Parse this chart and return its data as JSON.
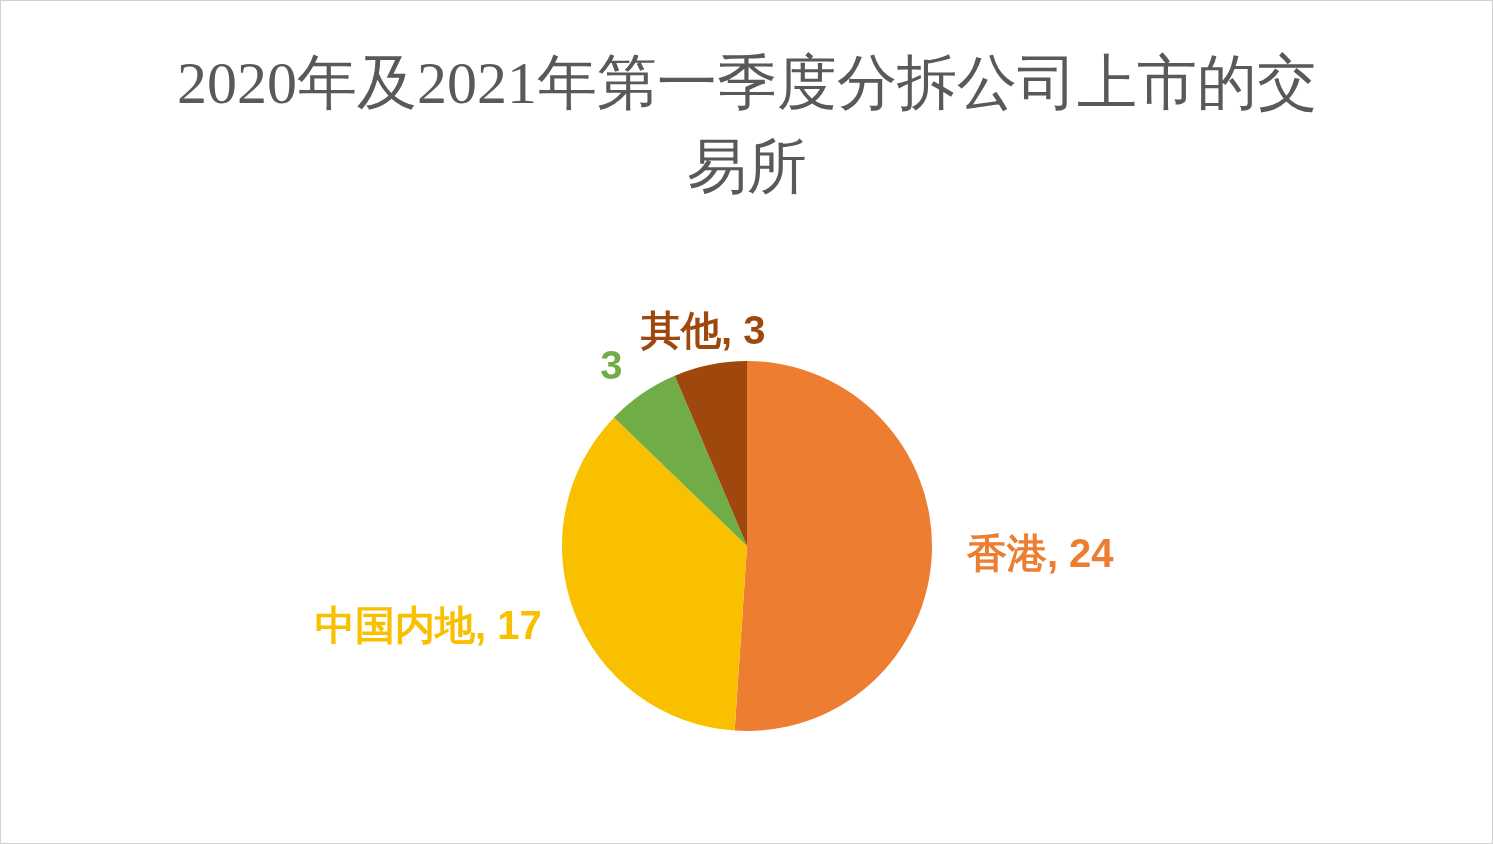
{
  "chart_data": {
    "type": "pie",
    "title": "2020年及2021年第一季度分拆公司上市的交易所",
    "categories": [
      "香港",
      "中国内地",
      null,
      "其他"
    ],
    "values": [
      24,
      17,
      3,
      3
    ],
    "colors": [
      "#ed7d31",
      "#f9c000",
      "#70ad47",
      "#9e480e"
    ],
    "value_labels": [
      ", 24",
      ", 17",
      "3",
      ", 3"
    ]
  }
}
